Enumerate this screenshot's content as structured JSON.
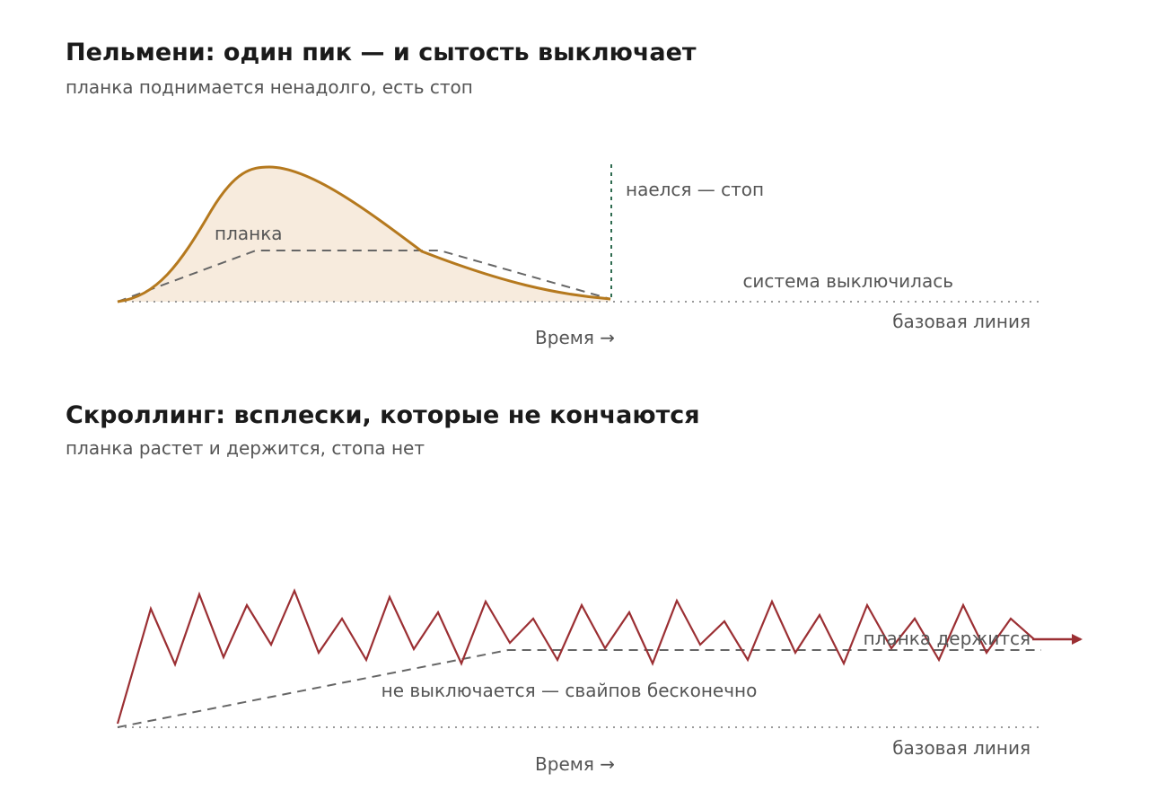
{
  "panel1": {
    "title": "Пельмени: один пик — и сытость выключает",
    "subtitle": "планка поднимается ненадолго, есть стоп",
    "labels": {
      "bar": "планка",
      "stop": "наелся — стоп",
      "off": "система выключилась",
      "baseline": "базовая линия",
      "time_axis": "Время →"
    }
  },
  "panel2": {
    "title": "Скроллинг: всплески, которые не кончаются",
    "subtitle": "планка растет и держится, стопа нет",
    "labels": {
      "bar_holds": "планка держится",
      "no_off": "не выключается — свайпов бесконечно",
      "baseline": "базовая линия",
      "time_axis": "Время →"
    }
  },
  "colors": {
    "curve": "#b5791e",
    "fill": "#f7ebdd",
    "stop_line": "#2e6b4f",
    "zigzag": "#9b2f33",
    "dashed": "#666666",
    "baseline": "#999999"
  }
}
